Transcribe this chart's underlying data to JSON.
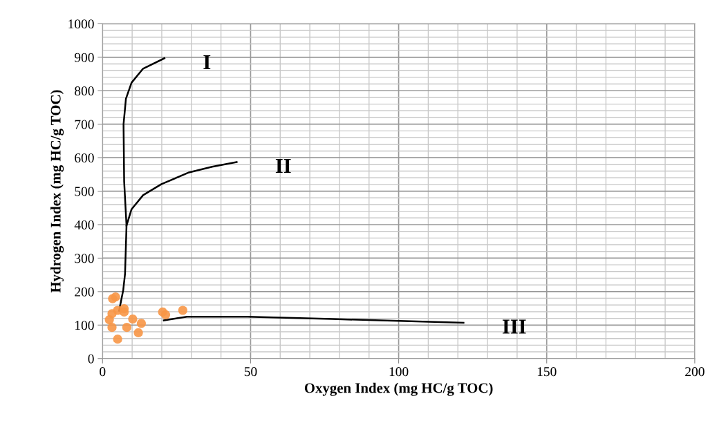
{
  "chart_data": {
    "type": "scatter",
    "xlabel": "Oxygen Index (mg HC/g TOC)",
    "ylabel": "Hydrogen Index (mg HC/g TOC)",
    "xlim": [
      0,
      200
    ],
    "ylim": [
      0,
      1000
    ],
    "xticks": [
      0,
      50,
      100,
      150,
      200
    ],
    "yticks": [
      0,
      100,
      200,
      300,
      400,
      500,
      600,
      700,
      800,
      900,
      1000
    ],
    "grid": true,
    "legend": false,
    "series": [
      {
        "type": "line",
        "name": "I",
        "color": "#000000",
        "marker": "none",
        "line_style": "solid",
        "x": [
          20.9,
          13.7,
          9.8,
          7.9,
          7.1,
          7.3,
          8.1,
          7.6,
          7.0,
          5.6
        ],
        "values": [
          897,
          866,
          824,
          776,
          700,
          529,
          397,
          253,
          205,
          143
        ]
      },
      {
        "type": "line",
        "name": "II",
        "color": "#000000",
        "marker": "none",
        "line_style": "solid",
        "x": [
          8.1,
          9.8,
          13.7,
          19.9,
          29.2,
          37.0,
          45.3
        ],
        "values": [
          397,
          446,
          488,
          521,
          556,
          573,
          587
        ]
      },
      {
        "type": "line",
        "name": "III",
        "color": "#000000",
        "marker": "none",
        "line_style": "solid",
        "x": [
          20.7,
          28.5,
          49,
          77.6,
          121.9
        ],
        "values": [
          114,
          125,
          125,
          118,
          107
        ]
      },
      {
        "color": "#f79646",
        "marker": "circle",
        "x": [
          3.4,
          4.4,
          5.1,
          7.3,
          7.3,
          3.2,
          2.3,
          3.2,
          5.1,
          8.2,
          10.2,
          13.1,
          12.1,
          20.3,
          21.3,
          27.1
        ],
        "values": [
          179,
          184,
          144,
          149,
          139,
          134,
          116,
          93,
          58,
          93,
          118,
          105,
          77,
          139,
          131,
          144
        ]
      }
    ]
  }
}
